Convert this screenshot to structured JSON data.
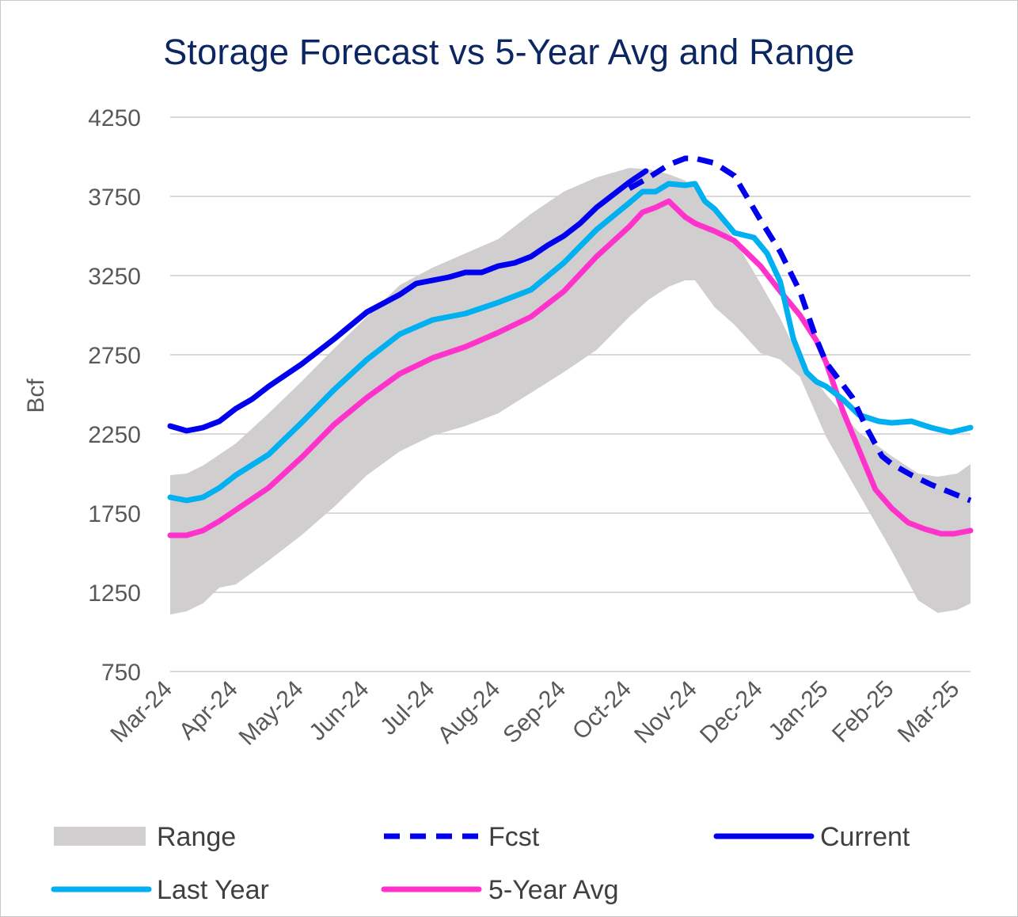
{
  "chart_data": {
    "type": "line",
    "title": "Storage Forecast vs 5-Year Avg and Range",
    "xlabel": "",
    "ylabel": "Bcf",
    "ylim": [
      750,
      4250
    ],
    "yticks": [
      750,
      1250,
      1750,
      2250,
      2750,
      3250,
      3750,
      4250
    ],
    "x_tick_labels": [
      "Mar-24",
      "Apr-24",
      "May-24",
      "Jun-24",
      "Jul-24",
      "Aug-24",
      "Sep-24",
      "Oct-24",
      "Nov-24",
      "Dec-24",
      "Jan-25",
      "Feb-25",
      "Mar-25"
    ],
    "x_range_months": [
      0,
      12.2
    ],
    "grid": "horizontal",
    "legend_position": "bottom",
    "series": [
      {
        "name": "Range",
        "kind": "band",
        "color": "#d0cece",
        "x": [
          0,
          0.25,
          0.5,
          0.75,
          1,
          1.5,
          2,
          2.5,
          3,
          3.5,
          4,
          4.5,
          5,
          5.5,
          6,
          6.5,
          7,
          7.3,
          7.6,
          7.85,
          8,
          8.3,
          8.6,
          9,
          9.3,
          9.6,
          10,
          10.5,
          11,
          11.4,
          11.7,
          12,
          12.2
        ],
        "upper": [
          1990,
          2000,
          2050,
          2120,
          2190,
          2380,
          2580,
          2790,
          2990,
          3190,
          3300,
          3390,
          3480,
          3640,
          3780,
          3870,
          3930,
          3920,
          3890,
          3850,
          3800,
          3650,
          3480,
          3200,
          2980,
          2720,
          2500,
          2260,
          2110,
          2000,
          1980,
          2000,
          2060
        ],
        "lower": [
          1110,
          1130,
          1180,
          1280,
          1300,
          1450,
          1610,
          1790,
          1990,
          2140,
          2240,
          2300,
          2380,
          2510,
          2640,
          2780,
          2990,
          3100,
          3180,
          3220,
          3220,
          3050,
          2940,
          2760,
          2720,
          2610,
          2230,
          1870,
          1510,
          1200,
          1120,
          1140,
          1180
        ]
      },
      {
        "name": "Fcst",
        "kind": "line",
        "style": "dashed",
        "color": "#0000ee",
        "x": [
          7.0,
          7.3,
          7.6,
          7.85,
          8.0,
          8.3,
          8.6,
          9.0,
          9.3,
          9.6,
          9.85,
          10.0,
          10.2,
          10.4,
          10.6,
          10.85,
          11.0,
          11.3,
          11.6,
          11.9,
          12.2
        ],
        "y": [
          3800,
          3870,
          3950,
          3990,
          3990,
          3960,
          3880,
          3600,
          3400,
          3150,
          2850,
          2700,
          2590,
          2480,
          2300,
          2110,
          2060,
          1990,
          1930,
          1880,
          1830
        ]
      },
      {
        "name": "Current",
        "kind": "line",
        "style": "solid",
        "color": "#0000ee",
        "x": [
          0,
          0.25,
          0.5,
          0.75,
          1,
          1.25,
          1.5,
          2,
          2.5,
          3,
          3.5,
          3.75,
          4,
          4.25,
          4.5,
          4.75,
          5,
          5.25,
          5.5,
          5.75,
          6,
          6.25,
          6.5,
          6.75,
          7,
          7.25
        ],
        "y": [
          2300,
          2270,
          2290,
          2330,
          2410,
          2470,
          2550,
          2690,
          2850,
          3020,
          3130,
          3200,
          3220,
          3240,
          3270,
          3270,
          3310,
          3330,
          3370,
          3440,
          3500,
          3580,
          3680,
          3760,
          3840,
          3910
        ]
      },
      {
        "name": "Last Year",
        "kind": "line",
        "style": "solid",
        "color": "#00b0f0",
        "x": [
          0,
          0.25,
          0.5,
          0.75,
          1,
          1.5,
          2,
          2.5,
          3,
          3.5,
          4,
          4.5,
          5,
          5.5,
          6,
          6.5,
          7,
          7.2,
          7.4,
          7.6,
          7.85,
          8.0,
          8.15,
          8.3,
          8.6,
          8.9,
          9.1,
          9.3,
          9.5,
          9.7,
          9.85,
          10.0,
          10.25,
          10.5,
          10.8,
          11.0,
          11.3,
          11.6,
          11.9,
          12.2
        ],
        "y": [
          1850,
          1830,
          1850,
          1910,
          1990,
          2120,
          2320,
          2530,
          2720,
          2880,
          2970,
          3010,
          3080,
          3160,
          3330,
          3540,
          3710,
          3780,
          3780,
          3830,
          3820,
          3830,
          3720,
          3670,
          3520,
          3490,
          3390,
          3210,
          2850,
          2640,
          2580,
          2550,
          2470,
          2370,
          2330,
          2320,
          2330,
          2290,
          2260,
          2290
        ]
      },
      {
        "name": "5-Year Avg",
        "kind": "line",
        "style": "solid",
        "color": "#ff33cc",
        "x": [
          0,
          0.25,
          0.5,
          0.75,
          1,
          1.5,
          2,
          2.5,
          3,
          3.5,
          4,
          4.5,
          5,
          5.5,
          6,
          6.5,
          7,
          7.2,
          7.4,
          7.6,
          7.85,
          8.0,
          8.3,
          8.6,
          9.0,
          9.3,
          9.6,
          9.85,
          10.0,
          10.25,
          10.5,
          10.75,
          11.0,
          11.25,
          11.5,
          11.75,
          11.95,
          12.2
        ],
        "y": [
          1610,
          1610,
          1640,
          1700,
          1770,
          1910,
          2100,
          2310,
          2480,
          2630,
          2730,
          2800,
          2890,
          2990,
          3150,
          3370,
          3560,
          3650,
          3680,
          3720,
          3620,
          3580,
          3530,
          3470,
          3310,
          3150,
          3000,
          2840,
          2700,
          2400,
          2150,
          1900,
          1780,
          1690,
          1650,
          1620,
          1620,
          1640
        ]
      }
    ]
  },
  "legend": [
    {
      "label": "Range",
      "icon": "band",
      "color": "#d0cece"
    },
    {
      "label": "Fcst",
      "icon": "dashed",
      "color": "#0000ee"
    },
    {
      "label": "Current",
      "icon": "solid",
      "color": "#0000ee"
    },
    {
      "label": "Last Year",
      "icon": "solid",
      "color": "#00b0f0"
    },
    {
      "label": "5-Year Avg",
      "icon": "solid",
      "color": "#ff33cc"
    }
  ]
}
